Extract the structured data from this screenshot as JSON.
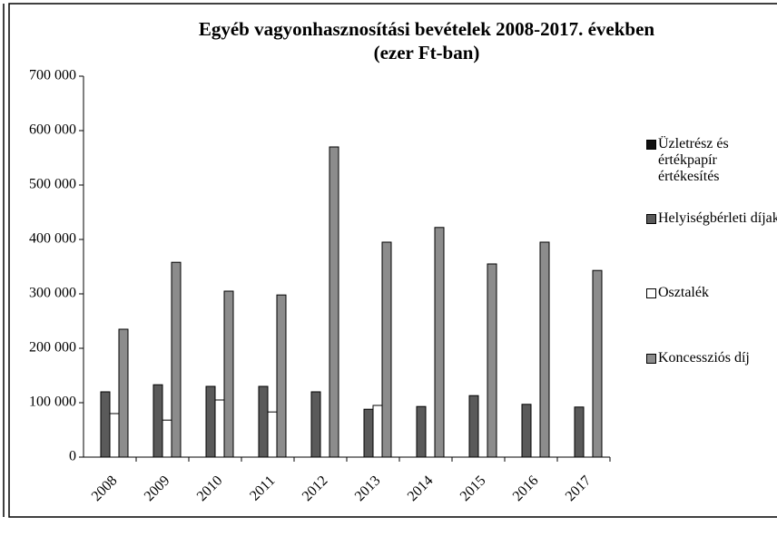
{
  "chart_data": {
    "type": "bar",
    "title": "Egyéb vagyonhasznosítási bevételek 2008-2017. években",
    "subtitle": "(ezer Ft-ban)",
    "categories": [
      "2008",
      "2009",
      "2010",
      "2011",
      "2012",
      "2013",
      "2014",
      "2015",
      "2016",
      "2017"
    ],
    "series": [
      {
        "name": "Üzletrész és értékpapír értékesítés",
        "color": "#111111",
        "values": [
          0,
          0,
          0,
          0,
          0,
          0,
          0,
          0,
          0,
          0
        ]
      },
      {
        "name": "Helyiségbérleti díjak",
        "color": "#5a5a5a",
        "values": [
          120000,
          133000,
          130000,
          130000,
          120000,
          88000,
          93000,
          113000,
          97000,
          92000
        ]
      },
      {
        "name": "Osztalék",
        "color": "#ffffff",
        "values": [
          80000,
          68000,
          105000,
          83000,
          0,
          95000,
          0,
          0,
          0,
          0
        ]
      },
      {
        "name": "Koncessziós díj",
        "color": "#8c8c8c",
        "values": [
          235000,
          358000,
          305000,
          298000,
          570000,
          395000,
          422000,
          355000,
          395000,
          343000
        ]
      }
    ],
    "ylim": [
      0,
      700000
    ],
    "yticks": [
      0,
      {
        "value": 100000,
        "label": "100 000"
      },
      {
        "value": 200000,
        "label": "200 000"
      },
      {
        "value": 300000,
        "label": "300 000"
      },
      {
        "value": 400000,
        "label": "400 000"
      },
      {
        "value": 500000,
        "label": "500 000"
      },
      {
        "value": 600000,
        "label": "600 000"
      },
      {
        "value": 700000,
        "label": "700 000"
      }
    ],
    "legend": "right"
  }
}
